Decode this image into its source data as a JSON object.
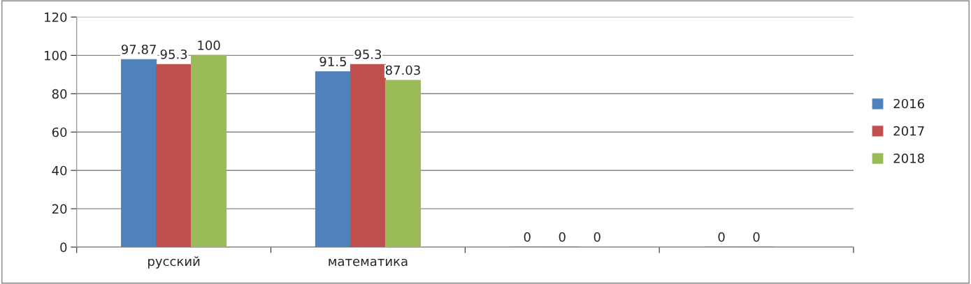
{
  "chart_data": {
    "type": "bar",
    "categories": [
      "русский",
      "математика",
      null,
      null
    ],
    "series": [
      {
        "name": "2016",
        "color": "#4f81bd",
        "values": [
          97.87,
          91.5,
          0,
          0
        ]
      },
      {
        "name": "2017",
        "color": "#c0504d",
        "values": [
          95.3,
          95.3,
          0,
          0
        ]
      },
      {
        "name": "2018",
        "color": "#9bbb59",
        "values": [
          100,
          87.03,
          0,
          null
        ]
      }
    ],
    "ylim": [
      0,
      120
    ],
    "yticks": [
      0,
      20,
      40,
      60,
      80,
      100,
      120
    ],
    "grid": "y",
    "legend": "right",
    "data_labels": true
  }
}
